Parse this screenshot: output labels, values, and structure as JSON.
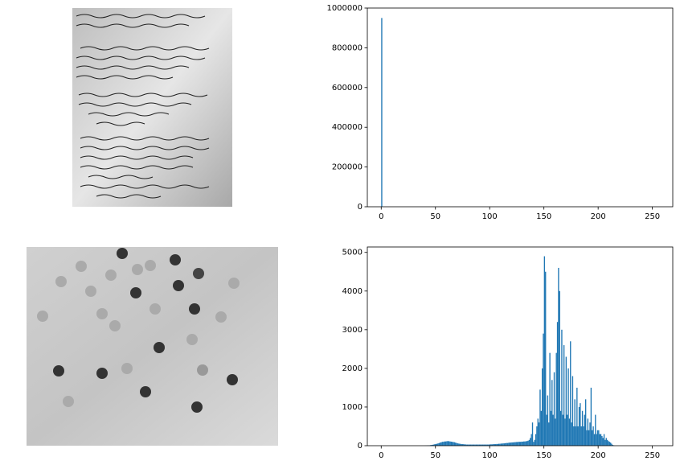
{
  "chart_data": [
    {
      "type": "histogram",
      "color": "#1f77b4",
      "xlim": [
        -12.8,
        268.8
      ],
      "ylim": [
        0,
        1000000
      ],
      "xticks": [
        0,
        50,
        100,
        150,
        200,
        250
      ],
      "yticks": [
        0,
        200000,
        400000,
        600000,
        800000,
        1000000
      ],
      "bins": [
        0,
        1,
        2,
        3,
        4,
        5,
        6,
        7,
        8,
        9,
        10,
        11,
        12,
        13,
        14,
        15,
        16,
        17,
        18,
        19,
        20,
        21,
        22,
        23,
        24,
        25,
        26,
        27,
        28,
        29,
        30,
        31,
        32,
        33,
        34,
        35,
        36,
        37,
        38,
        39,
        40,
        41,
        42,
        43,
        44,
        45,
        46,
        47,
        48,
        49,
        50,
        51,
        52,
        53,
        54,
        55,
        56,
        57,
        58,
        59,
        60,
        61,
        62,
        63,
        64,
        65,
        66,
        67,
        68,
        69,
        70,
        71,
        72,
        73,
        74,
        75,
        76,
        77,
        78,
        79,
        80,
        81,
        82,
        83,
        84,
        85,
        86,
        87,
        88,
        89,
        90,
        91,
        92,
        93,
        94,
        95,
        96,
        97,
        98,
        99,
        100,
        101,
        102,
        103,
        104,
        105,
        106,
        107,
        108,
        109,
        110,
        111,
        112,
        113,
        114,
        115,
        116,
        117,
        118,
        119,
        120,
        121,
        122,
        123,
        124,
        125,
        126,
        127,
        128,
        129,
        130,
        131,
        132,
        133,
        134,
        135,
        136,
        137,
        138,
        139,
        140,
        141,
        142,
        143,
        144,
        145,
        146,
        147,
        148,
        149,
        150,
        151,
        152,
        153,
        154,
        155,
        156,
        157,
        158,
        159,
        160,
        161,
        162,
        163,
        164,
        165,
        166,
        167,
        168,
        169,
        170,
        171,
        172,
        173,
        174,
        175,
        176,
        177,
        178,
        179,
        180,
        181,
        182,
        183,
        184,
        185,
        186,
        187,
        188,
        189,
        190,
        191,
        192,
        193,
        194,
        195,
        196,
        197,
        198,
        199,
        200,
        201,
        202,
        203,
        204,
        205,
        206,
        207,
        208,
        209,
        210,
        211,
        212,
        213,
        214,
        215,
        216,
        217,
        218,
        219,
        220,
        221,
        222,
        223,
        224,
        225,
        226,
        227,
        228,
        229,
        230,
        231,
        232,
        233,
        234,
        235,
        236,
        237,
        238,
        239,
        240,
        241,
        242,
        243,
        244,
        245,
        246,
        247,
        248,
        249,
        250,
        251,
        252,
        253,
        254,
        255,
        256
      ],
      "values": [
        950000,
        0,
        0,
        0,
        0,
        0,
        0,
        0,
        0,
        0,
        0,
        0,
        0,
        0,
        0,
        0,
        0,
        0,
        0,
        0,
        0,
        0,
        0,
        0,
        0,
        0,
        0,
        0,
        0,
        0,
        0,
        0,
        0,
        0,
        0,
        0,
        0,
        0,
        0,
        0,
        0,
        0,
        0,
        0,
        0,
        0,
        0,
        0,
        0,
        0,
        0,
        0,
        0,
        0,
        0,
        0,
        0,
        0,
        0,
        0,
        0,
        0,
        0,
        0,
        0,
        0,
        0,
        0,
        0,
        0,
        0,
        0,
        0,
        0,
        0,
        0,
        0,
        0,
        0,
        0,
        0,
        0,
        0,
        0,
        0,
        0,
        0,
        0,
        0,
        0,
        0,
        0,
        0,
        0,
        0,
        0,
        0,
        0,
        0,
        0,
        0,
        0,
        0,
        0,
        0,
        0,
        0,
        0,
        0,
        0,
        0,
        0,
        0,
        0,
        0,
        0,
        0,
        0,
        0,
        0,
        0,
        0,
        0,
        0,
        0,
        0,
        0,
        0,
        0,
        0,
        0,
        0,
        0,
        0,
        0,
        0,
        0,
        0,
        0,
        0,
        0,
        0,
        0,
        0,
        0,
        0,
        0,
        0,
        0,
        0,
        0,
        0,
        0,
        0,
        0,
        0,
        0,
        0,
        0,
        0,
        0,
        0,
        0,
        0,
        0,
        0,
        0,
        0,
        0,
        0,
        0,
        0,
        0,
        0,
        0,
        0,
        0,
        0,
        0,
        0,
        0,
        0,
        0,
        0,
        0,
        0,
        0,
        0,
        0,
        0,
        0,
        0,
        0,
        0,
        0,
        0,
        0,
        0,
        0,
        0,
        0,
        0,
        0,
        0,
        0,
        0,
        0,
        0,
        0,
        0,
        0,
        0,
        0,
        0,
        0,
        0,
        0,
        0,
        0,
        0,
        0,
        0,
        0,
        0,
        0,
        0,
        0,
        0,
        0,
        0,
        0,
        0,
        0,
        0,
        0,
        0,
        0,
        0,
        0,
        0,
        0,
        0,
        0,
        0,
        0,
        0,
        0,
        0,
        0,
        0,
        0,
        0,
        0,
        0,
        0,
        0
      ]
    },
    {
      "type": "histogram",
      "color": "#1f77b4",
      "xlim": [
        -12.8,
        268.8
      ],
      "ylim": [
        0,
        5140
      ],
      "xticks": [
        0,
        50,
        100,
        150,
        200,
        250
      ],
      "yticks": [
        0,
        1000,
        2000,
        3000,
        4000,
        5000
      ],
      "bins": [
        0,
        1,
        2,
        3,
        4,
        5,
        6,
        7,
        8,
        9,
        10,
        11,
        12,
        13,
        14,
        15,
        16,
        17,
        18,
        19,
        20,
        21,
        22,
        23,
        24,
        25,
        26,
        27,
        28,
        29,
        30,
        31,
        32,
        33,
        34,
        35,
        36,
        37,
        38,
        39,
        40,
        41,
        42,
        43,
        44,
        45,
        46,
        47,
        48,
        49,
        50,
        51,
        52,
        53,
        54,
        55,
        56,
        57,
        58,
        59,
        60,
        61,
        62,
        63,
        64,
        65,
        66,
        67,
        68,
        69,
        70,
        71,
        72,
        73,
        74,
        75,
        76,
        77,
        78,
        79,
        80,
        81,
        82,
        83,
        84,
        85,
        86,
        87,
        88,
        89,
        90,
        91,
        92,
        93,
        94,
        95,
        96,
        97,
        98,
        99,
        100,
        101,
        102,
        103,
        104,
        105,
        106,
        107,
        108,
        109,
        110,
        111,
        112,
        113,
        114,
        115,
        116,
        117,
        118,
        119,
        120,
        121,
        122,
        123,
        124,
        125,
        126,
        127,
        128,
        129,
        130,
        131,
        132,
        133,
        134,
        135,
        136,
        137,
        138,
        139,
        140,
        141,
        142,
        143,
        144,
        145,
        146,
        147,
        148,
        149,
        150,
        151,
        152,
        153,
        154,
        155,
        156,
        157,
        158,
        159,
        160,
        161,
        162,
        163,
        164,
        165,
        166,
        167,
        168,
        169,
        170,
        171,
        172,
        173,
        174,
        175,
        176,
        177,
        178,
        179,
        180,
        181,
        182,
        183,
        184,
        185,
        186,
        187,
        188,
        189,
        190,
        191,
        192,
        193,
        194,
        195,
        196,
        197,
        198,
        199,
        200,
        201,
        202,
        203,
        204,
        205,
        206,
        207,
        208,
        209,
        210,
        211,
        212,
        213,
        214,
        215,
        216,
        217,
        218,
        219,
        220,
        221,
        222,
        223,
        224,
        225,
        226,
        227,
        228,
        229,
        230,
        231,
        232,
        233,
        234,
        235,
        236,
        237,
        238,
        239,
        240,
        241,
        242,
        243,
        244,
        245,
        246,
        247,
        248,
        249,
        250,
        251,
        252,
        253,
        254,
        255,
        256
      ],
      "values": [
        0,
        0,
        0,
        0,
        0,
        0,
        0,
        0,
        0,
        0,
        0,
        0,
        0,
        0,
        0,
        0,
        0,
        0,
        0,
        0,
        0,
        0,
        0,
        0,
        0,
        0,
        0,
        0,
        0,
        0,
        0,
        0,
        0,
        0,
        0,
        0,
        0,
        0,
        0,
        0,
        2,
        3,
        5,
        8,
        10,
        15,
        20,
        25,
        30,
        40,
        45,
        50,
        60,
        70,
        80,
        90,
        100,
        100,
        110,
        110,
        115,
        120,
        115,
        110,
        105,
        100,
        95,
        90,
        80,
        70,
        60,
        55,
        50,
        45,
        40,
        40,
        35,
        35,
        30,
        30,
        30,
        30,
        30,
        30,
        30,
        30,
        30,
        30,
        30,
        30,
        30,
        30,
        30,
        30,
        30,
        30,
        30,
        30,
        30,
        30,
        35,
        35,
        35,
        40,
        40,
        40,
        45,
        45,
        50,
        50,
        55,
        55,
        60,
        60,
        65,
        70,
        70,
        75,
        80,
        80,
        85,
        85,
        90,
        90,
        95,
        95,
        100,
        100,
        100,
        105,
        105,
        110,
        110,
        115,
        120,
        130,
        150,
        200,
        300,
        600,
        100,
        150,
        300,
        500,
        700,
        600,
        1450,
        900,
        2000,
        2900,
        4900,
        4500,
        800,
        1300,
        600,
        2400,
        900,
        1700,
        800,
        1900,
        700,
        2400,
        3200,
        4600,
        4000,
        900,
        3000,
        800,
        2600,
        700,
        2300,
        800,
        2000,
        700,
        2700,
        600,
        1800,
        500,
        1200,
        500,
        1500,
        500,
        1000,
        1100,
        500,
        900,
        500,
        800,
        1200,
        400,
        700,
        400,
        600,
        1500,
        400,
        500,
        300,
        800,
        300,
        400,
        400,
        300,
        300,
        250,
        200,
        300,
        150,
        200,
        150,
        120,
        100,
        80,
        50,
        20,
        10,
        0,
        0,
        0,
        0,
        0,
        0,
        0,
        0,
        0,
        0,
        0,
        0,
        0,
        0,
        0,
        0,
        0,
        0,
        0,
        0,
        0,
        0,
        0,
        0,
        0,
        0,
        0,
        0,
        0,
        0,
        0,
        0,
        0,
        0,
        0,
        0,
        0,
        0,
        0,
        0,
        0
      ]
    }
  ]
}
